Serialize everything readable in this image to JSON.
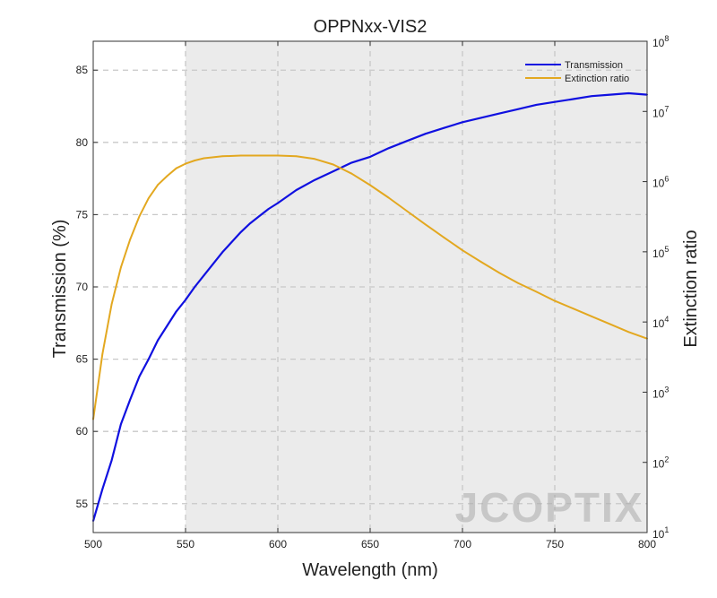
{
  "chart_data": {
    "type": "line",
    "title": "OPPNxx-VIS2",
    "xlabel": "Wavelength (nm)",
    "ylabel": "Transmission (%)",
    "y2label": "Extinction ratio",
    "xlim": [
      500,
      800
    ],
    "ylim": [
      53,
      87
    ],
    "y2lim": [
      10,
      100000000
    ],
    "y2scale": "log",
    "grid": true,
    "legend_position": "top-right",
    "shaded_band": [
      550,
      800
    ],
    "x_ticks": [
      "500",
      "550",
      "600",
      "650",
      "700",
      "750",
      "800"
    ],
    "y_ticks": [
      "55",
      "60",
      "65",
      "70",
      "75",
      "80",
      "85"
    ],
    "y2_ticks": [
      {
        "base": "10",
        "exp": "1"
      },
      {
        "base": "10",
        "exp": "2"
      },
      {
        "base": "10",
        "exp": "3"
      },
      {
        "base": "10",
        "exp": "4"
      },
      {
        "base": "10",
        "exp": "5"
      },
      {
        "base": "10",
        "exp": "6"
      },
      {
        "base": "10",
        "exp": "7"
      },
      {
        "base": "10",
        "exp": "8"
      }
    ],
    "series": [
      {
        "name": "Transmission",
        "axis": "left",
        "color": "#1010e0",
        "x": [
          500,
          505,
          510,
          515,
          520,
          525,
          530,
          535,
          540,
          545,
          550,
          555,
          560,
          565,
          570,
          575,
          580,
          585,
          590,
          595,
          600,
          610,
          620,
          630,
          640,
          650,
          660,
          670,
          680,
          690,
          700,
          710,
          720,
          730,
          740,
          750,
          760,
          770,
          780,
          790,
          800
        ],
        "y": [
          53.8,
          56.0,
          58.0,
          60.5,
          62.2,
          63.8,
          65.0,
          66.3,
          67.3,
          68.3,
          69.1,
          70.0,
          70.8,
          71.6,
          72.4,
          73.1,
          73.8,
          74.4,
          74.9,
          75.4,
          75.8,
          76.7,
          77.4,
          78.0,
          78.6,
          79.0,
          79.6,
          80.1,
          80.6,
          81.0,
          81.4,
          81.7,
          82.0,
          82.3,
          82.6,
          82.8,
          83.0,
          83.2,
          83.3,
          83.4,
          83.3
        ]
      },
      {
        "name": "Extinction ratio",
        "axis": "right",
        "color": "#e3a820",
        "x": [
          500,
          505,
          510,
          515,
          520,
          525,
          530,
          535,
          540,
          545,
          550,
          555,
          560,
          570,
          580,
          590,
          600,
          610,
          620,
          630,
          640,
          650,
          660,
          670,
          680,
          690,
          700,
          710,
          720,
          730,
          740,
          750,
          760,
          770,
          780,
          790,
          800
        ],
        "y": [
          410,
          3500,
          18000,
          60000,
          150000,
          320000,
          580000,
          900000,
          1200000,
          1550000,
          1800000,
          2000000,
          2150000,
          2300000,
          2350000,
          2350000,
          2350000,
          2300000,
          2100000,
          1750000,
          1300000,
          890000,
          590000,
          380000,
          245000,
          160000,
          105000,
          72000,
          50000,
          36000,
          27000,
          20000,
          15500,
          12000,
          9300,
          7200,
          5800
        ]
      }
    ]
  },
  "watermark": "JCOPTIX"
}
